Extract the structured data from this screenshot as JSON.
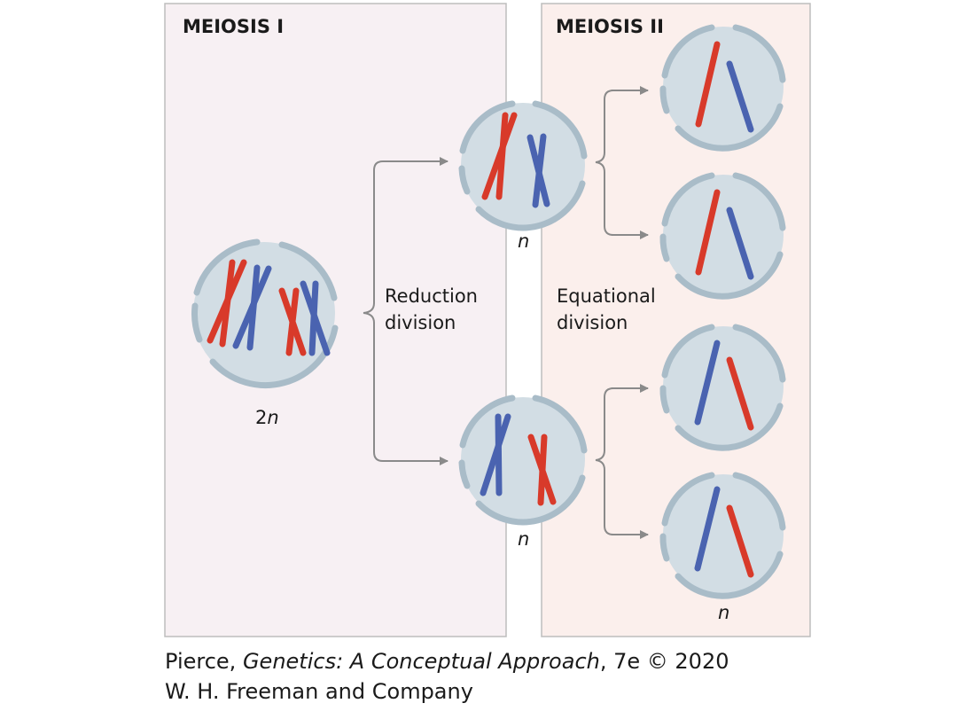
{
  "panels": {
    "meiosis_1": {
      "title": "MEIOSIS I",
      "fill": "#f7f0f3",
      "border": "#bdbdbd"
    },
    "meiosis_2": {
      "title": "MEIOSIS II",
      "fill": "#fbefec",
      "border": "#bdbdbd"
    }
  },
  "labels": {
    "reduction_line1": "Reduction",
    "reduction_line2": "division",
    "equational_line1": "Equational",
    "equational_line2": "division"
  },
  "ploidy": {
    "parent_prefix": "2",
    "parent_suffix": "n",
    "daughter_top": "n",
    "daughter_bottom": "n",
    "final": "n"
  },
  "credit": {
    "line1_author": "Pierce,",
    "line1_title": "Genetics: A Conceptual Approach",
    "line1_rest": ", 7e © 2020",
    "line2": "W. H. Freeman and Company"
  },
  "colors": {
    "cell_fill": "#d2dde4",
    "cell_membrane": "#a9bcc8",
    "chromosome_red": "#d83a2a",
    "chromosome_blue": "#4a63b0",
    "arrow": "#8a8a8a"
  }
}
